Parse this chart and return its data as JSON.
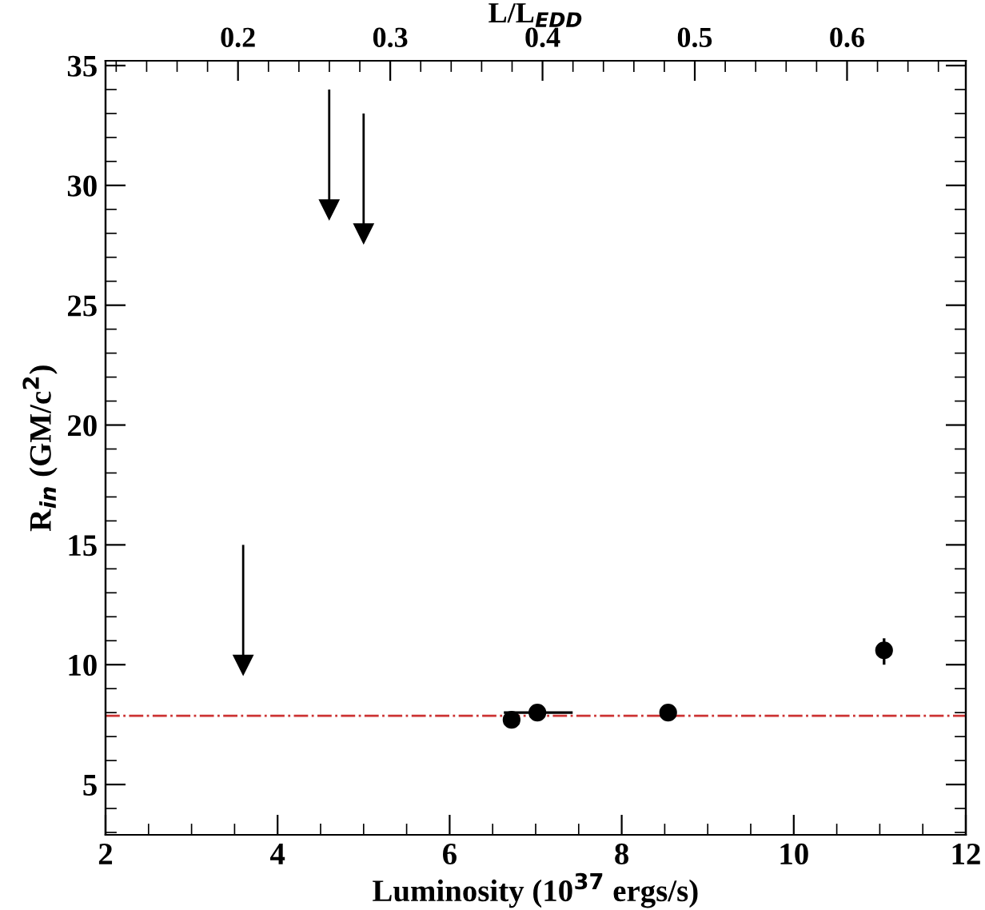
{
  "chart_data": {
    "type": "scatter",
    "xlabel": "Luminosity (10$^{37}$ ergs/s)",
    "ylabel": "R$_{in}$ (GM/c$^{2}$)",
    "x2label": "L/L$_{EDD}$",
    "xlim": [
      2,
      12
    ],
    "ylim": [
      2.9,
      35.2
    ],
    "x2lim": [
      0.113,
      0.678
    ],
    "xticks": [
      2,
      4,
      6,
      8,
      10,
      12,
      {
        "value": 2.5,
        "label": null
      },
      {
        "value": 3,
        "label": null
      },
      {
        "value": 3.5,
        "label": null
      },
      {
        "value": 4.5,
        "label": null
      },
      {
        "value": 5,
        "label": null
      },
      {
        "value": 5.5,
        "label": null
      },
      {
        "value": 6.5,
        "label": null
      },
      {
        "value": 7,
        "label": null
      },
      {
        "value": 7.5,
        "label": null
      },
      {
        "value": 8.5,
        "label": null
      },
      {
        "value": 9,
        "label": null
      },
      {
        "value": 9.5,
        "label": null
      },
      {
        "value": 10.5,
        "label": null
      },
      {
        "value": 11,
        "label": null
      },
      {
        "value": 11.5,
        "label": null
      }
    ],
    "yticks": [
      5,
      10,
      15,
      20,
      25,
      30,
      35,
      {
        "value": 3,
        "label": null
      },
      {
        "value": 4,
        "label": null
      },
      {
        "value": 6,
        "label": null
      },
      {
        "value": 7,
        "label": null
      },
      {
        "value": 8,
        "label": null
      },
      {
        "value": 9,
        "label": null
      },
      {
        "value": 11,
        "label": null
      },
      {
        "value": 12,
        "label": null
      },
      {
        "value": 13,
        "label": null
      },
      {
        "value": 14,
        "label": null
      },
      {
        "value": 16,
        "label": null
      },
      {
        "value": 17,
        "label": null
      },
      {
        "value": 18,
        "label": null
      },
      {
        "value": 19,
        "label": null
      },
      {
        "value": 21,
        "label": null
      },
      {
        "value": 22,
        "label": null
      },
      {
        "value": 23,
        "label": null
      },
      {
        "value": 24,
        "label": null
      },
      {
        "value": 26,
        "label": null
      },
      {
        "value": 27,
        "label": null
      },
      {
        "value": 28,
        "label": null
      },
      {
        "value": 29,
        "label": null
      },
      {
        "value": 31,
        "label": null
      },
      {
        "value": 32,
        "label": null
      },
      {
        "value": 33,
        "label": null
      },
      {
        "value": 34,
        "label": null
      }
    ],
    "x2ticks": [
      0.2,
      0.3,
      0.4,
      0.5,
      0.6,
      {
        "value": 0.12,
        "label": null
      },
      {
        "value": 0.14,
        "label": null
      },
      {
        "value": 0.16,
        "label": null
      },
      {
        "value": 0.18,
        "label": null
      },
      {
        "value": 0.22,
        "label": null
      },
      {
        "value": 0.24,
        "label": null
      },
      {
        "value": 0.26,
        "label": null
      },
      {
        "value": 0.28,
        "label": null
      },
      {
        "value": 0.32,
        "label": null
      },
      {
        "value": 0.34,
        "label": null
      },
      {
        "value": 0.36,
        "label": null
      },
      {
        "value": 0.38,
        "label": null
      },
      {
        "value": 0.42,
        "label": null
      },
      {
        "value": 0.44,
        "label": null
      },
      {
        "value": 0.46,
        "label": null
      },
      {
        "value": 0.48,
        "label": null
      },
      {
        "value": 0.52,
        "label": null
      },
      {
        "value": 0.54,
        "label": null
      },
      {
        "value": 0.56,
        "label": null
      },
      {
        "value": 0.58,
        "label": null
      },
      {
        "value": 0.62,
        "label": null
      },
      {
        "value": 0.64,
        "label": null
      },
      {
        "value": 0.66,
        "label": null
      }
    ],
    "grid": false,
    "legend": false,
    "series": [
      {
        "marker": "circle",
        "color": "#000000",
        "x": [
          6.72,
          7.02,
          8.54,
          11.05
        ],
        "values": [
          7.7,
          8.0,
          8.0,
          10.6
        ],
        "errors": [
          null,
          null,
          null,
          [
            10.0,
            11.1
          ]
        ],
        "xerrors": [
          null,
          [
            6.63,
            7.43
          ],
          null,
          null
        ]
      },
      {
        "marker": "triangle",
        "color": "#000000",
        "x": [
          4.6,
          5.0,
          3.6
        ],
        "values": [
          29,
          28,
          10
        ],
        "errors": [
          [
            29,
            34
          ],
          [
            28,
            33
          ],
          [
            10,
            15
          ]
        ]
      }
    ],
    "ref_lines": [
      {
        "axis": "y",
        "value": 7.87,
        "color": "#cc3333",
        "line_style": "dashdot"
      }
    ]
  }
}
